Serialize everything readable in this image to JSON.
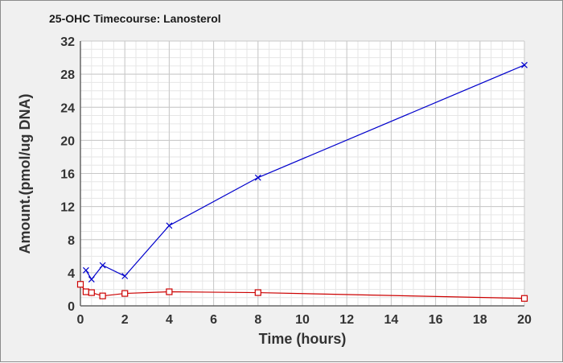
{
  "chart_data": {
    "type": "line",
    "title": "25-OHC Timecourse: Lanosterol",
    "xlabel": "Time (hours)",
    "ylabel": "Amount.(pmol/ug DNA)",
    "xlim": [
      0,
      20
    ],
    "ylim": [
      0,
      32
    ],
    "x_ticks": [
      0,
      2,
      4,
      6,
      8,
      10,
      12,
      14,
      16,
      18,
      20
    ],
    "y_ticks": [
      0,
      4,
      8,
      12,
      16,
      20,
      24,
      28,
      32
    ],
    "grid": true,
    "legend": "none",
    "series": [
      {
        "color": "#0000cc",
        "marker": "x",
        "x": [
          0.25,
          0.5,
          1,
          2,
          4,
          8,
          20
        ],
        "y": [
          4.3,
          3.2,
          4.9,
          3.6,
          9.7,
          15.5,
          29.1
        ]
      },
      {
        "color": "#cc0000",
        "marker": "square",
        "x": [
          0,
          0.25,
          0.5,
          1,
          2,
          4,
          8,
          20
        ],
        "y": [
          2.6,
          1.7,
          1.6,
          1.2,
          1.5,
          1.7,
          1.6,
          0.9
        ]
      }
    ],
    "colors": {
      "background": "#f0f0f0",
      "plot_area": "#ffffff",
      "grid_major": "#c8c8c8",
      "grid_minor": "#e6e6e6",
      "axis": "#666666"
    }
  }
}
